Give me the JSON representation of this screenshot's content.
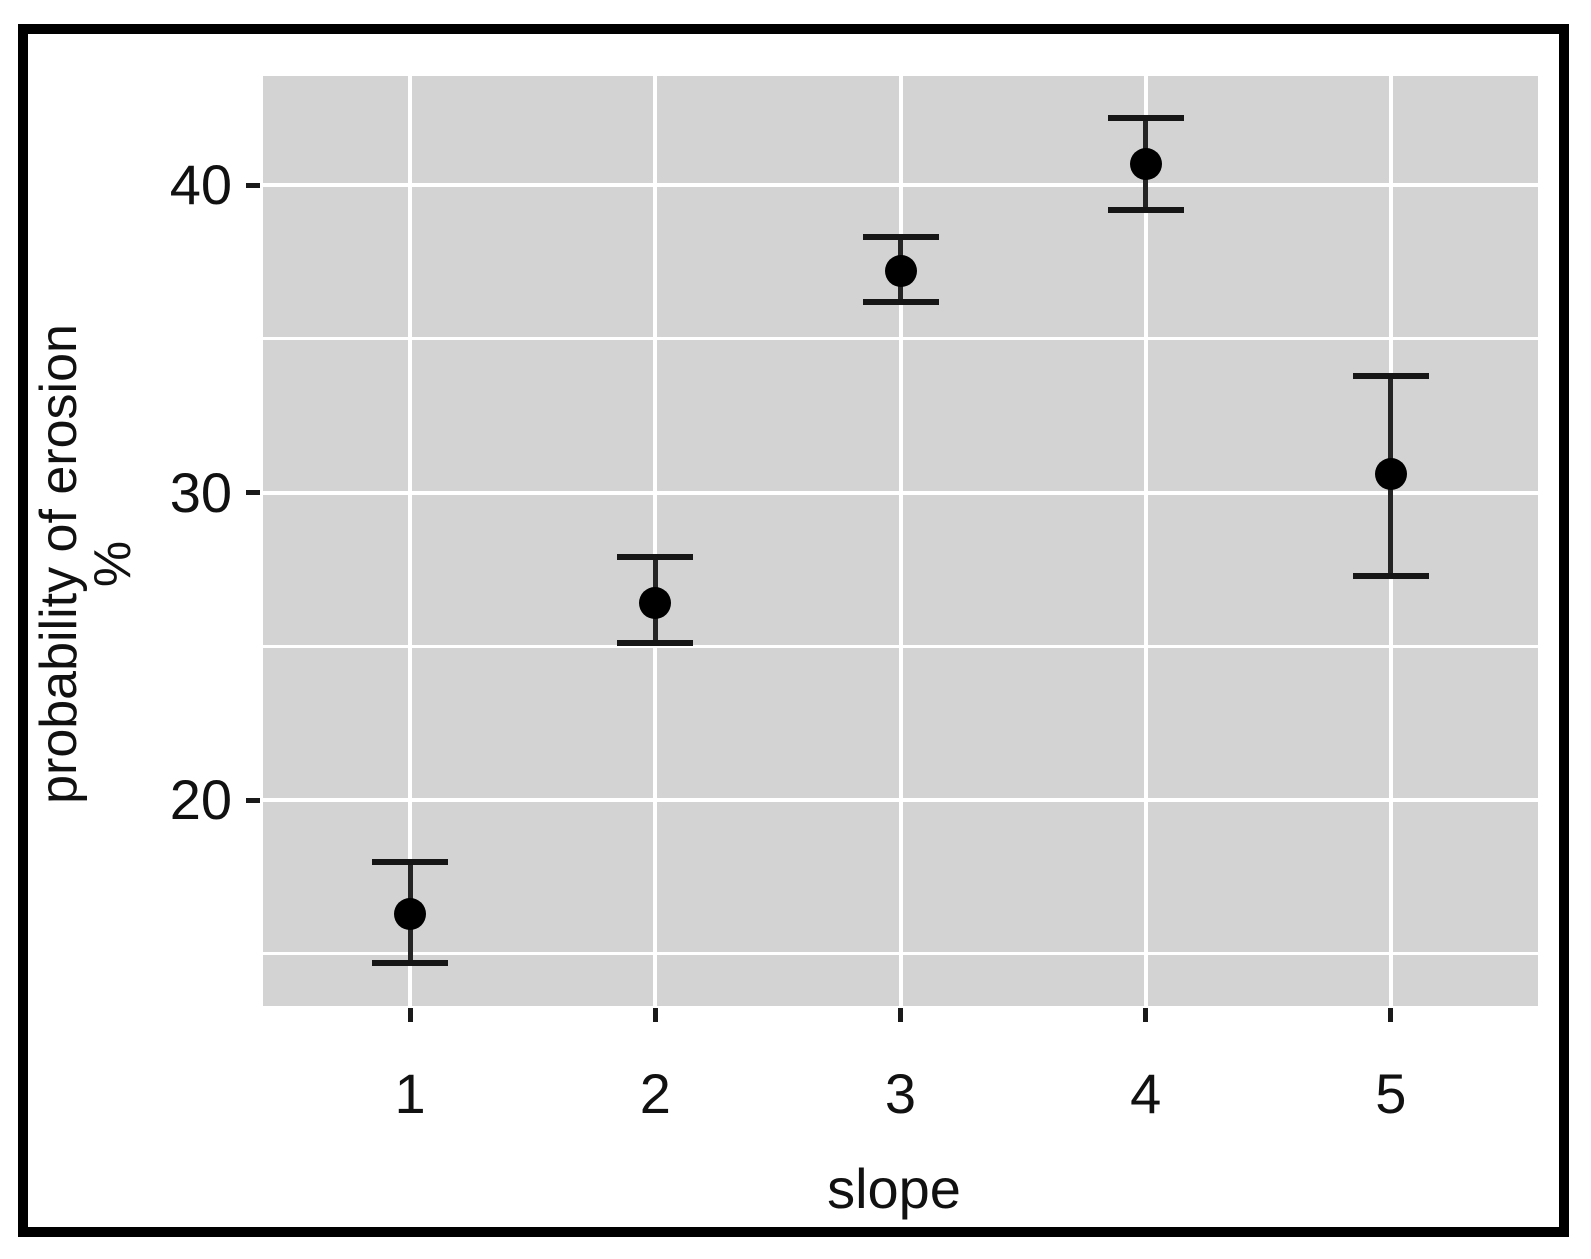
{
  "chart_data": {
    "type": "scatter",
    "title": "",
    "xlabel": "slope",
    "ylabel_line1": "probability of erosion",
    "ylabel_line2": "%",
    "x": [
      1,
      2,
      3,
      4,
      5
    ],
    "x_tick_labels": [
      "1",
      "2",
      "3",
      "4",
      "5"
    ],
    "series": [
      {
        "name": "probability of erosion",
        "values": [
          16.3,
          26.4,
          37.2,
          40.7,
          30.6
        ],
        "error_low": [
          14.7,
          25.1,
          36.2,
          39.2,
          27.3
        ],
        "error_high": [
          18.0,
          27.9,
          38.3,
          42.2,
          33.8
        ]
      }
    ],
    "y_major_ticks": [
      20,
      30,
      40
    ],
    "y_tick_labels": [
      "20",
      "30",
      "40"
    ],
    "y_minor_gridlines": [
      15,
      25,
      35
    ],
    "ylim": [
      13.3,
      43.55
    ],
    "grid": true,
    "legend_position": "none",
    "style": "ggplot-gray",
    "colors": {
      "panel_bg": "#d3d3d3",
      "gridline": "#ffffff",
      "point": "#000000",
      "error_bar": "#1a1a1a",
      "frame": "#000000",
      "text": "#111111"
    }
  }
}
